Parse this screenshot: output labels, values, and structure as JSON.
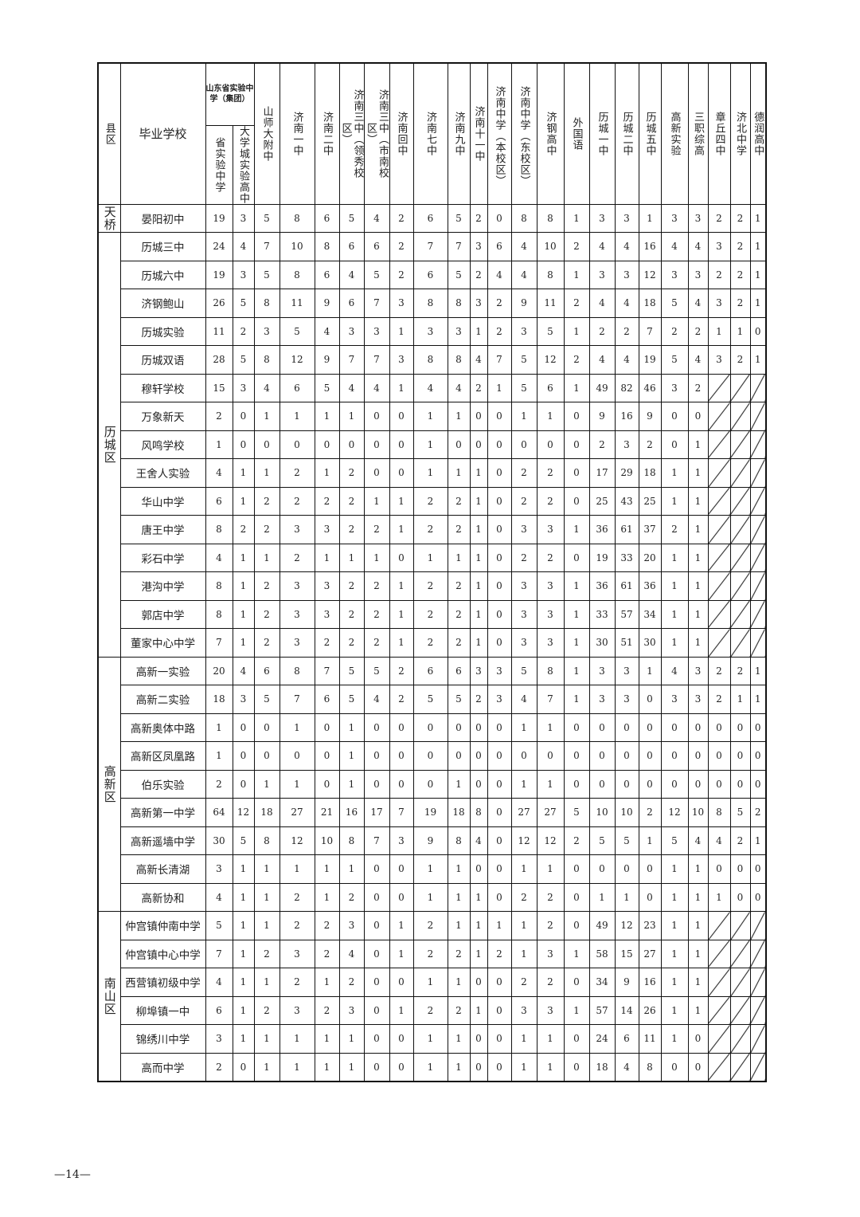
{
  "table": {
    "header": {
      "district": "县区",
      "school": "毕业学校",
      "group_label": "山东省实验中学（集团）",
      "group_columns": [
        "省实验中学",
        "大学城实验高中"
      ],
      "columns": [
        "山师大附中",
        "济南一中",
        "济南二中",
        "济南三中（领秀校区）",
        "济南三中（市南校区）",
        "济南回中",
        "济南七中",
        "济南九中",
        "济南十一中",
        "济南中学（本校区）",
        "济南中学（东校区）",
        "济钢高中",
        "外国语",
        "历城一中",
        "历城二中",
        "历城五中",
        "高新实验",
        "三职综高",
        "章丘四中",
        "济北中学",
        "德润高中"
      ]
    },
    "districts": [
      {
        "name": "天桥",
        "rows": [
          {
            "school": "晏阳初中",
            "values": [
              19,
              3,
              5,
              8,
              6,
              5,
              4,
              2,
              6,
              5,
              2,
              0,
              8,
              8,
              1,
              3,
              3,
              1,
              3,
              3,
              2,
              2,
              1
            ]
          }
        ]
      },
      {
        "name": "历城区",
        "rows": [
          {
            "school": "历城三中",
            "values": [
              24,
              4,
              7,
              10,
              8,
              6,
              6,
              2,
              7,
              7,
              3,
              6,
              4,
              10,
              2,
              4,
              4,
              16,
              4,
              4,
              3,
              2,
              1
            ]
          },
          {
            "school": "历城六中",
            "values": [
              19,
              3,
              5,
              8,
              6,
              4,
              5,
              2,
              6,
              5,
              2,
              4,
              4,
              8,
              1,
              3,
              3,
              12,
              3,
              3,
              2,
              2,
              1
            ]
          },
          {
            "school": "济钢鲍山",
            "values": [
              26,
              5,
              8,
              11,
              9,
              6,
              7,
              3,
              8,
              8,
              3,
              2,
              9,
              11,
              2,
              4,
              4,
              18,
              5,
              4,
              3,
              2,
              1
            ]
          },
          {
            "school": "历城实验",
            "values": [
              11,
              2,
              3,
              5,
              4,
              3,
              3,
              1,
              3,
              3,
              1,
              2,
              3,
              5,
              1,
              2,
              2,
              7,
              2,
              2,
              1,
              1,
              0
            ]
          },
          {
            "school": "历城双语",
            "values": [
              28,
              5,
              8,
              12,
              9,
              7,
              7,
              3,
              8,
              8,
              4,
              7,
              5,
              12,
              2,
              4,
              4,
              19,
              5,
              4,
              3,
              2,
              1
            ]
          },
          {
            "school": "穆轩学校",
            "values": [
              15,
              3,
              4,
              6,
              5,
              4,
              4,
              1,
              4,
              4,
              2,
              1,
              5,
              6,
              1,
              49,
              82,
              46,
              3,
              2,
              null,
              null,
              null
            ]
          },
          {
            "school": "万象新天",
            "values": [
              2,
              0,
              1,
              1,
              1,
              1,
              0,
              0,
              1,
              1,
              0,
              0,
              1,
              1,
              0,
              9,
              16,
              9,
              0,
              0,
              null,
              null,
              null
            ]
          },
          {
            "school": "风鸣学校",
            "values": [
              1,
              0,
              0,
              0,
              0,
              0,
              0,
              0,
              1,
              0,
              0,
              0,
              0,
              0,
              0,
              2,
              3,
              2,
              0,
              1,
              null,
              null,
              null
            ]
          },
          {
            "school": "王舍人实验",
            "values": [
              4,
              1,
              1,
              2,
              1,
              2,
              0,
              0,
              1,
              1,
              1,
              0,
              2,
              2,
              0,
              17,
              29,
              18,
              1,
              1,
              null,
              null,
              null
            ]
          },
          {
            "school": "华山中学",
            "values": [
              6,
              1,
              2,
              2,
              2,
              2,
              1,
              1,
              2,
              2,
              1,
              0,
              2,
              2,
              0,
              25,
              43,
              25,
              1,
              1,
              null,
              null,
              null
            ]
          },
          {
            "school": "唐王中学",
            "values": [
              8,
              2,
              2,
              3,
              3,
              2,
              2,
              1,
              2,
              2,
              1,
              0,
              3,
              3,
              1,
              36,
              61,
              37,
              2,
              1,
              null,
              null,
              null
            ]
          },
          {
            "school": "彩石中学",
            "values": [
              4,
              1,
              1,
              2,
              1,
              1,
              1,
              0,
              1,
              1,
              1,
              0,
              2,
              2,
              0,
              19,
              33,
              20,
              1,
              1,
              null,
              null,
              null
            ]
          },
          {
            "school": "港沟中学",
            "values": [
              8,
              1,
              2,
              3,
              3,
              2,
              2,
              1,
              2,
              2,
              1,
              0,
              3,
              3,
              1,
              36,
              61,
              36,
              1,
              1,
              null,
              null,
              null
            ]
          },
          {
            "school": "郭店中学",
            "values": [
              8,
              1,
              2,
              3,
              3,
              2,
              2,
              1,
              2,
              2,
              1,
              0,
              3,
              3,
              1,
              33,
              57,
              34,
              1,
              1,
              null,
              null,
              null
            ]
          },
          {
            "school": "董家中心中学",
            "values": [
              7,
              1,
              2,
              3,
              2,
              2,
              2,
              1,
              2,
              2,
              1,
              0,
              3,
              3,
              1,
              30,
              51,
              30,
              1,
              1,
              null,
              null,
              null
            ]
          }
        ]
      },
      {
        "name": "高新区",
        "rows": [
          {
            "school": "高新一实验",
            "values": [
              20,
              4,
              6,
              8,
              7,
              5,
              5,
              2,
              6,
              6,
              3,
              3,
              5,
              8,
              1,
              3,
              3,
              1,
              4,
              3,
              2,
              2,
              1
            ]
          },
          {
            "school": "高新二实验",
            "values": [
              18,
              3,
              5,
              7,
              6,
              5,
              4,
              2,
              5,
              5,
              2,
              3,
              4,
              7,
              1,
              3,
              3,
              0,
              3,
              3,
              2,
              1,
              1
            ]
          },
          {
            "school": "高新奥体中路",
            "values": [
              1,
              0,
              0,
              1,
              0,
              1,
              0,
              0,
              0,
              0,
              0,
              0,
              1,
              1,
              0,
              0,
              0,
              0,
              0,
              0,
              0,
              0,
              0
            ]
          },
          {
            "school": "高新区凤凰路",
            "values": [
              1,
              0,
              0,
              0,
              0,
              1,
              0,
              0,
              0,
              0,
              0,
              0,
              0,
              0,
              0,
              0,
              0,
              0,
              0,
              0,
              0,
              0,
              0
            ]
          },
          {
            "school": "伯乐实验",
            "values": [
              2,
              0,
              1,
              1,
              0,
              1,
              0,
              0,
              0,
              1,
              0,
              0,
              1,
              1,
              0,
              0,
              0,
              0,
              0,
              0,
              0,
              0,
              0
            ]
          },
          {
            "school": "高新第一中学",
            "values": [
              64,
              12,
              18,
              27,
              21,
              16,
              17,
              7,
              19,
              18,
              8,
              0,
              27,
              27,
              5,
              10,
              10,
              2,
              12,
              10,
              8,
              5,
              2
            ]
          },
          {
            "school": "高新遥墙中学",
            "values": [
              30,
              5,
              8,
              12,
              10,
              8,
              7,
              3,
              9,
              8,
              4,
              0,
              12,
              12,
              2,
              5,
              5,
              1,
              5,
              4,
              4,
              2,
              1
            ]
          },
          {
            "school": "高新长清湖",
            "values": [
              3,
              1,
              1,
              1,
              1,
              1,
              0,
              0,
              1,
              1,
              0,
              0,
              1,
              1,
              0,
              0,
              0,
              0,
              1,
              1,
              0,
              0,
              0
            ]
          },
          {
            "school": "高新协和",
            "values": [
              4,
              1,
              1,
              2,
              1,
              2,
              0,
              0,
              1,
              1,
              1,
              0,
              2,
              2,
              0,
              1,
              1,
              0,
              1,
              1,
              1,
              0,
              0
            ]
          }
        ]
      },
      {
        "name": "南山区",
        "rows": [
          {
            "school": "仲宫镇仲南中学",
            "values": [
              5,
              1,
              1,
              2,
              2,
              3,
              0,
              1,
              2,
              1,
              1,
              1,
              1,
              2,
              0,
              49,
              12,
              23,
              1,
              1,
              null,
              null,
              null
            ]
          },
          {
            "school": "仲宫镇中心中学",
            "values": [
              7,
              1,
              2,
              3,
              2,
              4,
              0,
              1,
              2,
              2,
              1,
              2,
              1,
              3,
              1,
              58,
              15,
              27,
              1,
              1,
              null,
              null,
              null
            ]
          },
          {
            "school": "西营镇初级中学",
            "values": [
              4,
              1,
              1,
              2,
              1,
              2,
              0,
              0,
              1,
              1,
              0,
              0,
              2,
              2,
              0,
              34,
              9,
              16,
              1,
              1,
              null,
              null,
              null
            ]
          },
          {
            "school": "柳埠镇一中",
            "values": [
              6,
              1,
              2,
              3,
              2,
              3,
              0,
              1,
              2,
              2,
              1,
              0,
              3,
              3,
              1,
              57,
              14,
              26,
              1,
              1,
              null,
              null,
              null
            ]
          },
          {
            "school": "锦绣川中学",
            "values": [
              3,
              1,
              1,
              1,
              1,
              1,
              0,
              0,
              1,
              1,
              0,
              0,
              1,
              1,
              0,
              24,
              6,
              11,
              1,
              0,
              null,
              null,
              null
            ]
          },
          {
            "school": "高而中学",
            "values": [
              2,
              0,
              1,
              1,
              1,
              1,
              0,
              0,
              1,
              1,
              0,
              0,
              1,
              1,
              0,
              18,
              4,
              8,
              0,
              0,
              null,
              null,
              null
            ]
          }
        ]
      }
    ]
  },
  "footer": {
    "page_number": "—14—"
  }
}
